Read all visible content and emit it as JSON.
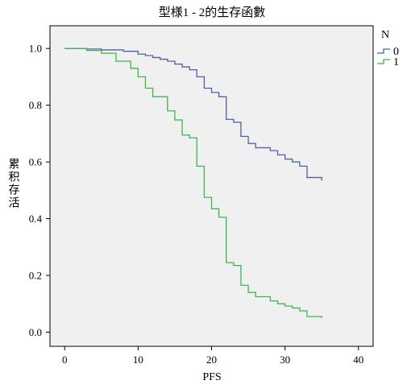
{
  "chart_data": {
    "type": "line",
    "title": "型様1 - 2的生存函數",
    "xlabel": "PFS",
    "ylabel": "累积存活",
    "xlim": [
      -2,
      42
    ],
    "ylim": [
      -0.05,
      1.08
    ],
    "x_ticks": [
      {
        "value": 0,
        "label": "0"
      },
      {
        "value": 10,
        "label": "10"
      },
      {
        "value": 20,
        "label": "20"
      },
      {
        "value": 30,
        "label": "30"
      },
      {
        "value": 40,
        "label": "40"
      }
    ],
    "y_ticks": [
      {
        "value": 0.0,
        "label": "0.0"
      },
      {
        "value": 0.2,
        "label": "0.2"
      },
      {
        "value": 0.4,
        "label": "0.4"
      },
      {
        "value": 0.6,
        "label": "0.6"
      },
      {
        "value": 0.8,
        "label": "0.8"
      },
      {
        "value": 1.0,
        "label": "1.0"
      }
    ],
    "grid": false,
    "background": "#f0f0f0",
    "legend": {
      "title": "N",
      "position": "top-right"
    },
    "series": [
      {
        "name": "0",
        "color": "#4f5fa8",
        "step": "post",
        "x": [
          0,
          3,
          5,
          8,
          10,
          11,
          12,
          13,
          14,
          15,
          16,
          17,
          18,
          19,
          20,
          21,
          22,
          23,
          24,
          25,
          26,
          27,
          28,
          29,
          30,
          31,
          32,
          33,
          35
        ],
        "y": [
          1.0,
          0.998,
          0.995,
          0.99,
          0.98,
          0.975,
          0.968,
          0.962,
          0.955,
          0.945,
          0.935,
          0.925,
          0.9,
          0.86,
          0.845,
          0.83,
          0.75,
          0.74,
          0.69,
          0.665,
          0.65,
          0.65,
          0.64,
          0.625,
          0.61,
          0.6,
          0.585,
          0.545,
          0.535
        ]
      },
      {
        "name": "1",
        "color": "#3fb54a",
        "step": "post",
        "x": [
          0,
          3,
          5,
          7,
          9,
          10,
          11,
          12,
          14,
          15,
          16,
          17,
          18,
          19,
          20,
          21,
          22,
          23,
          24,
          25,
          26,
          28,
          29,
          30,
          31,
          32,
          33,
          35
        ],
        "y": [
          1.0,
          0.993,
          0.983,
          0.955,
          0.93,
          0.9,
          0.86,
          0.83,
          0.78,
          0.748,
          0.695,
          0.685,
          0.585,
          0.475,
          0.435,
          0.405,
          0.245,
          0.235,
          0.165,
          0.14,
          0.125,
          0.11,
          0.1,
          0.092,
          0.085,
          0.075,
          0.055,
          0.05
        ]
      }
    ]
  }
}
